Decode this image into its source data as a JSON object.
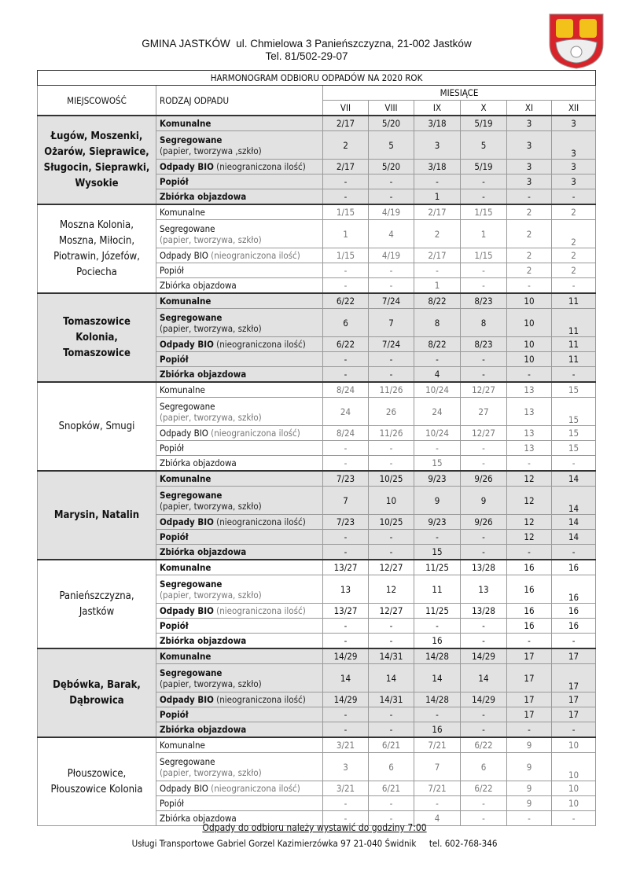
{
  "header": {
    "line1": "GMINA JASTKÓW  ul. Chmielowa 3 Panieńszczyzna, 21-002 Jastków",
    "line2": "Tel. 81/502-29-07"
  },
  "colors": {
    "logo_red": "#d9232a",
    "logo_gold": "#f2c21b",
    "shade": "#e2e2e2"
  },
  "table": {
    "title": "HARMONOGRAM ODBIORU ODPADÓW NA 2020 ROK",
    "col_location": "MIEJSCOWOŚĆ",
    "col_type": "RODZAJ ODPADU",
    "col_months": "MIESIĄCE",
    "months": [
      "VII",
      "VIII",
      "IX",
      "X",
      "XI",
      "XII"
    ],
    "types": [
      {
        "name": "Komunalne",
        "sub": ""
      },
      {
        "name": "Segregowane",
        "sub": "(papier, tworzywa, szkło)"
      },
      {
        "name": "Odpady BIO",
        "sub": " (nieograniczona ilość)"
      },
      {
        "name": "Popiół",
        "sub": ""
      },
      {
        "name": "Zbiórka objazdowa",
        "sub": ""
      }
    ],
    "groups": [
      {
        "location": "Ługów, Moszenki, Ożarów, Sieprawice, Sługocin, Sieprawki, Wysokie",
        "style": "shade",
        "seg_sub": "(papier, tworzywa ,szkło)",
        "rows": [
          [
            "2/17",
            "5/20",
            "3/18",
            "5/19",
            "3",
            "3"
          ],
          [
            "2",
            "5",
            "3",
            "5",
            "3",
            "3"
          ],
          [
            "2/17",
            "5/20",
            "3/18",
            "5/19",
            "3",
            "3"
          ],
          [
            "-",
            "-",
            "-",
            "-",
            "3",
            "3"
          ],
          [
            "-",
            "-",
            "1",
            "-",
            "-",
            "-"
          ]
        ]
      },
      {
        "location": "Moszna Kolonia, Moszna, Miłocin, Piotrawin, Józefów, Pociecha",
        "style": "light",
        "rows": [
          [
            "1/15",
            "4/19",
            "2/17",
            "1/15",
            "2",
            "2"
          ],
          [
            "1",
            "4",
            "2",
            "1",
            "2",
            "2"
          ],
          [
            "1/15",
            "4/19",
            "2/17",
            "1/15",
            "2",
            "2"
          ],
          [
            "-",
            "-",
            "-",
            "-",
            "2",
            "2"
          ],
          [
            "-",
            "-",
            "1",
            "-",
            "-",
            "-"
          ]
        ]
      },
      {
        "location": "Tomaszowice Kolonia, Tomaszowice",
        "style": "shade",
        "rows": [
          [
            "6/22",
            "7/24",
            "8/22",
            "8/23",
            "10",
            "11"
          ],
          [
            "6",
            "7",
            "8",
            "8",
            "10",
            "11"
          ],
          [
            "6/22",
            "7/24",
            "8/22",
            "8/23",
            "10",
            "11"
          ],
          [
            "-",
            "-",
            "-",
            "-",
            "10",
            "11"
          ],
          [
            "-",
            "-",
            "4",
            "-",
            "-",
            "-"
          ]
        ]
      },
      {
        "location": "Snopków, Smugi",
        "style": "light",
        "rows": [
          [
            "8/24",
            "11/26",
            "10/24",
            "12/27",
            "13",
            "15"
          ],
          [
            "24",
            "26",
            "24",
            "27",
            "13",
            "15"
          ],
          [
            "8/24",
            "11/26",
            "10/24",
            "12/27",
            "13",
            "15"
          ],
          [
            "-",
            "-",
            "-",
            "-",
            "13",
            "15"
          ],
          [
            "-",
            "-",
            "15",
            "-",
            "-",
            "-"
          ]
        ]
      },
      {
        "location": "Marysin, Natalin",
        "style": "shade",
        "rows": [
          [
            "7/23",
            "10/25",
            "9/23",
            "9/26",
            "12",
            "14"
          ],
          [
            "7",
            "10",
            "9",
            "9",
            "12",
            "14"
          ],
          [
            "7/23",
            "10/25",
            "9/23",
            "9/26",
            "12",
            "14"
          ],
          [
            "-",
            "-",
            "-",
            "-",
            "12",
            "14"
          ],
          [
            "-",
            "-",
            "15",
            "-",
            "-",
            "-"
          ]
        ]
      },
      {
        "location": "Panieńszczyzna, Jastków",
        "style": "dark",
        "rows": [
          [
            "13/27",
            "12/27",
            "11/25",
            "13/28",
            "16",
            "16"
          ],
          [
            "13",
            "12",
            "11",
            "13",
            "16",
            "16"
          ],
          [
            "13/27",
            "12/27",
            "11/25",
            "13/28",
            "16",
            "16"
          ],
          [
            "-",
            "-",
            "-",
            "-",
            "16",
            "16"
          ],
          [
            "-",
            "-",
            "16",
            "-",
            "-",
            "-"
          ]
        ]
      },
      {
        "location": "Dębówka, Barak, Dąbrowica",
        "style": "shade",
        "rows": [
          [
            "14/29",
            "14/31",
            "14/28",
            "14/29",
            "17",
            "17"
          ],
          [
            "14",
            "14",
            "14",
            "14",
            "17",
            "17"
          ],
          [
            "14/29",
            "14/31",
            "14/28",
            "14/29",
            "17",
            "17"
          ],
          [
            "-",
            "-",
            "-",
            "-",
            "17",
            "17"
          ],
          [
            "-",
            "-",
            "16",
            "-",
            "-",
            "-"
          ]
        ]
      },
      {
        "location": "Płouszowice, Płouszowice Kolonia",
        "style": "light",
        "rows": [
          [
            "3/21",
            "6/21",
            "7/21",
            "6/22",
            "9",
            "10"
          ],
          [
            "3",
            "6",
            "7",
            "6",
            "9",
            "10"
          ],
          [
            "3/21",
            "6/21",
            "7/21",
            "6/22",
            "9",
            "10"
          ],
          [
            "-",
            "-",
            "-",
            "-",
            "9",
            "10"
          ],
          [
            "-",
            "-",
            "4",
            "-",
            "-",
            "-"
          ]
        ]
      }
    ]
  },
  "footer": {
    "note": "Odpady do odbioru należy wystawić do godziny 7:00",
    "company": "Usługi Transportowe Gabriel Gorzel Kazimierzówka 97 21-040 Świdnik     tel. 602-768-346"
  }
}
